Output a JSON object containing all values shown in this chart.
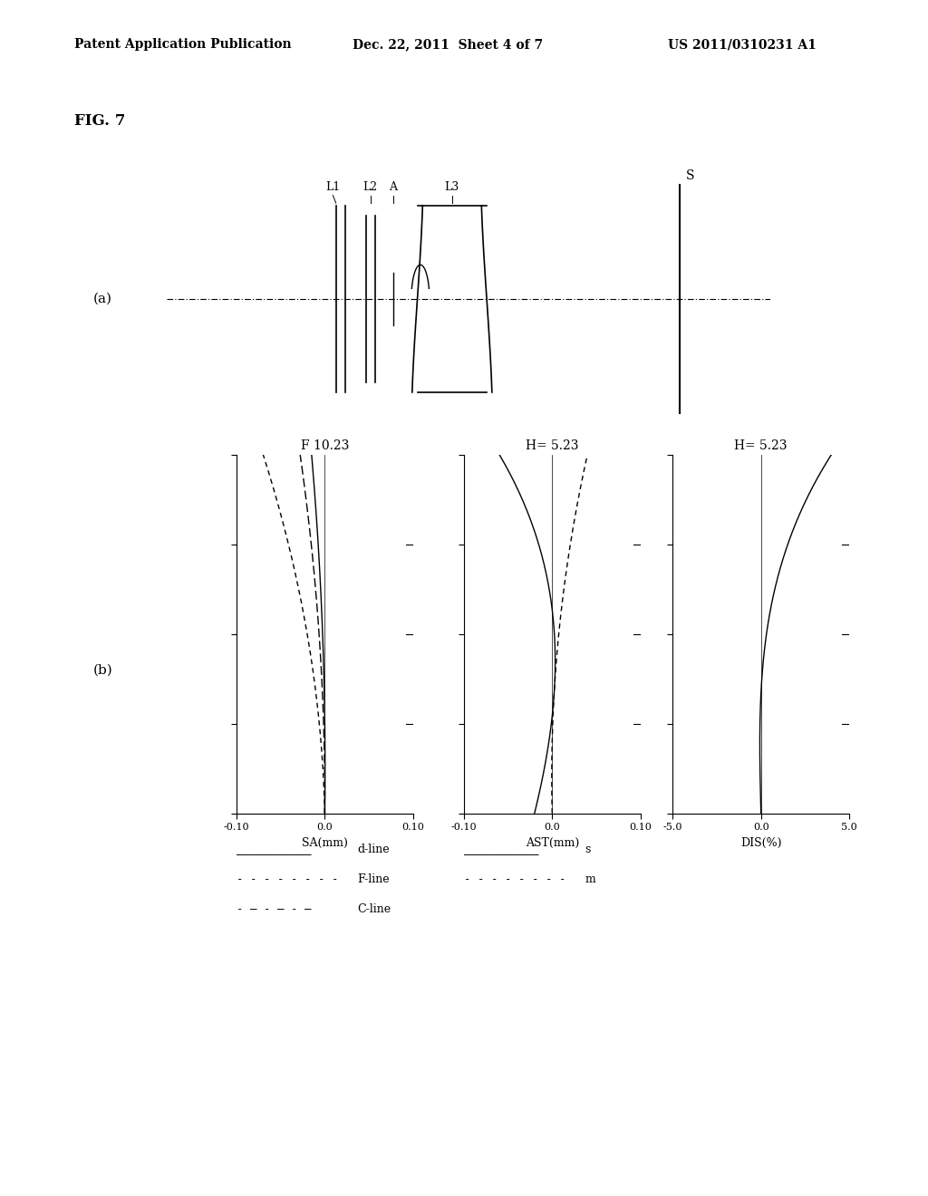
{
  "header_left": "Patent Application Publication",
  "header_mid": "Dec. 22, 2011  Sheet 4 of 7",
  "header_right": "US 2011/0310231 A1",
  "fig_label": "FIG. 7",
  "subfig_a_label": "(a)",
  "subfig_b_label": "(b)",
  "sa_title": "F 10.23",
  "ast_title": "H= 5.23",
  "dis_title": "H= 5.23",
  "sa_xlabel": "SA(mm)",
  "ast_xlabel": "AST(mm)",
  "dis_xlabel": "DIS(%)",
  "sa_xlim": [
    -0.1,
    0.1
  ],
  "ast_xlim": [
    -0.1,
    0.1
  ],
  "dis_xlim": [
    -5.0,
    5.0
  ],
  "sa_xticks": [
    -0.1,
    0.0,
    0.1
  ],
  "ast_xticks": [
    -0.1,
    0.0,
    0.1
  ],
  "dis_xticks": [
    -5.0,
    0.0,
    5.0
  ],
  "background_color": "#ffffff",
  "line_color": "#000000"
}
